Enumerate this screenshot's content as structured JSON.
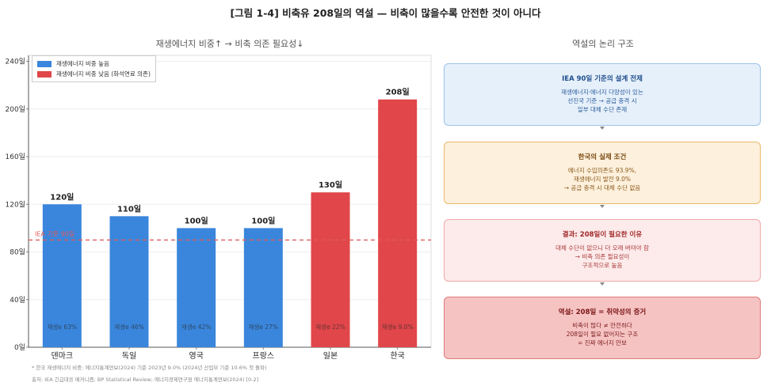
{
  "figure_title": "[그림 1-4]  비축유 208일의 역설 — 비축이 많을수록 안전한 것이 아니다",
  "chart_subtitle": "재생에너지 비중↑  →  비축 의존 필요성↓",
  "right_subtitle": "역설의 논리 구조",
  "chart_data": {
    "type": "bar",
    "categories": [
      "덴마크",
      "독일",
      "영국",
      "프랑스",
      "일본",
      "한국"
    ],
    "values": [
      120,
      110,
      100,
      100,
      130,
      208
    ],
    "value_labels": [
      "120일",
      "110일",
      "100일",
      "100일",
      "130일",
      "208일"
    ],
    "inner_labels": [
      "재생e 63%",
      "재생e 46%",
      "재생e 42%",
      "재생e 27%",
      "재생e 22%",
      "재생e 9.0%"
    ],
    "groups": [
      "high",
      "high",
      "high",
      "high",
      "low",
      "low"
    ],
    "ylim": [
      0,
      245
    ],
    "yticks": [
      0,
      40,
      80,
      120,
      160,
      200,
      240
    ],
    "ytick_labels": [
      "0일",
      "40일",
      "80일",
      "120일",
      "160일",
      "200일",
      "240일"
    ],
    "reference_line": {
      "value": 90,
      "label": "IEA 기준 90일",
      "color": "#e05a5a"
    },
    "colors": {
      "high": "#3a86dc",
      "low": "#e0464a"
    },
    "legend": [
      {
        "label": "재생에너지 비중 높음",
        "color": "#3a86dc"
      },
      {
        "label": "재생에너지 비중 낮음 (화석연료 의존)",
        "color": "#e0464a"
      }
    ]
  },
  "boxes": [
    {
      "title": "IEA 90일 기준의 설계 전제",
      "lines": [
        "재생에너지·에너지 다양성이 있는",
        "선진국 기준 → 공급 충격 시",
        "일부 대체 수단 존재"
      ],
      "bg": "#e6f0fb",
      "border": "#9cc2ea",
      "title_color": "#1f4e8c",
      "text_color": "#2c5d9a"
    },
    {
      "title": "한국의 실제 조건",
      "lines": [
        "에너지 수입의존도 93.9%,",
        "재생에너지 발전 9.0%",
        "→ 공급 충격 시 대체 수단 없음"
      ],
      "bg": "#fdf0dc",
      "border": "#e9b86a",
      "title_color": "#7a4a10",
      "text_color": "#8a5a1a"
    },
    {
      "title": "결과: 208일이 필요한 이유",
      "lines": [
        "대체 수단이 없으니 더 오래 버텨야 함",
        "→ 비축 의존 필요성이",
        "구조적으로 높음"
      ],
      "bg": "#fdeaea",
      "border": "#f0a9a9",
      "title_color": "#a02828",
      "text_color": "#a83a3a"
    },
    {
      "title": "역설: 208일 = 취약성의 증거",
      "lines": [
        "비축이 많다 ≠ 안전하다",
        "208일이 필요 없어지는 구조",
        "= 진짜 에너지 안보"
      ],
      "bg": "#f6c3c3",
      "border": "#e07a7a",
      "title_color": "#7a1414",
      "text_color": "#7a1a1a"
    }
  ],
  "footnotes": [
    "* 한국 재생에너지 비중: 에너지통계연보(2024) 기준 2023년 9.0% (2024년 산업부 기준 10.6% 첫 돌파)",
    "출처: IEA 긴급대응 메커니즘; BP Statistical Review; 에너지경제연구원 에너지통계연보(2024) [0-2]"
  ]
}
